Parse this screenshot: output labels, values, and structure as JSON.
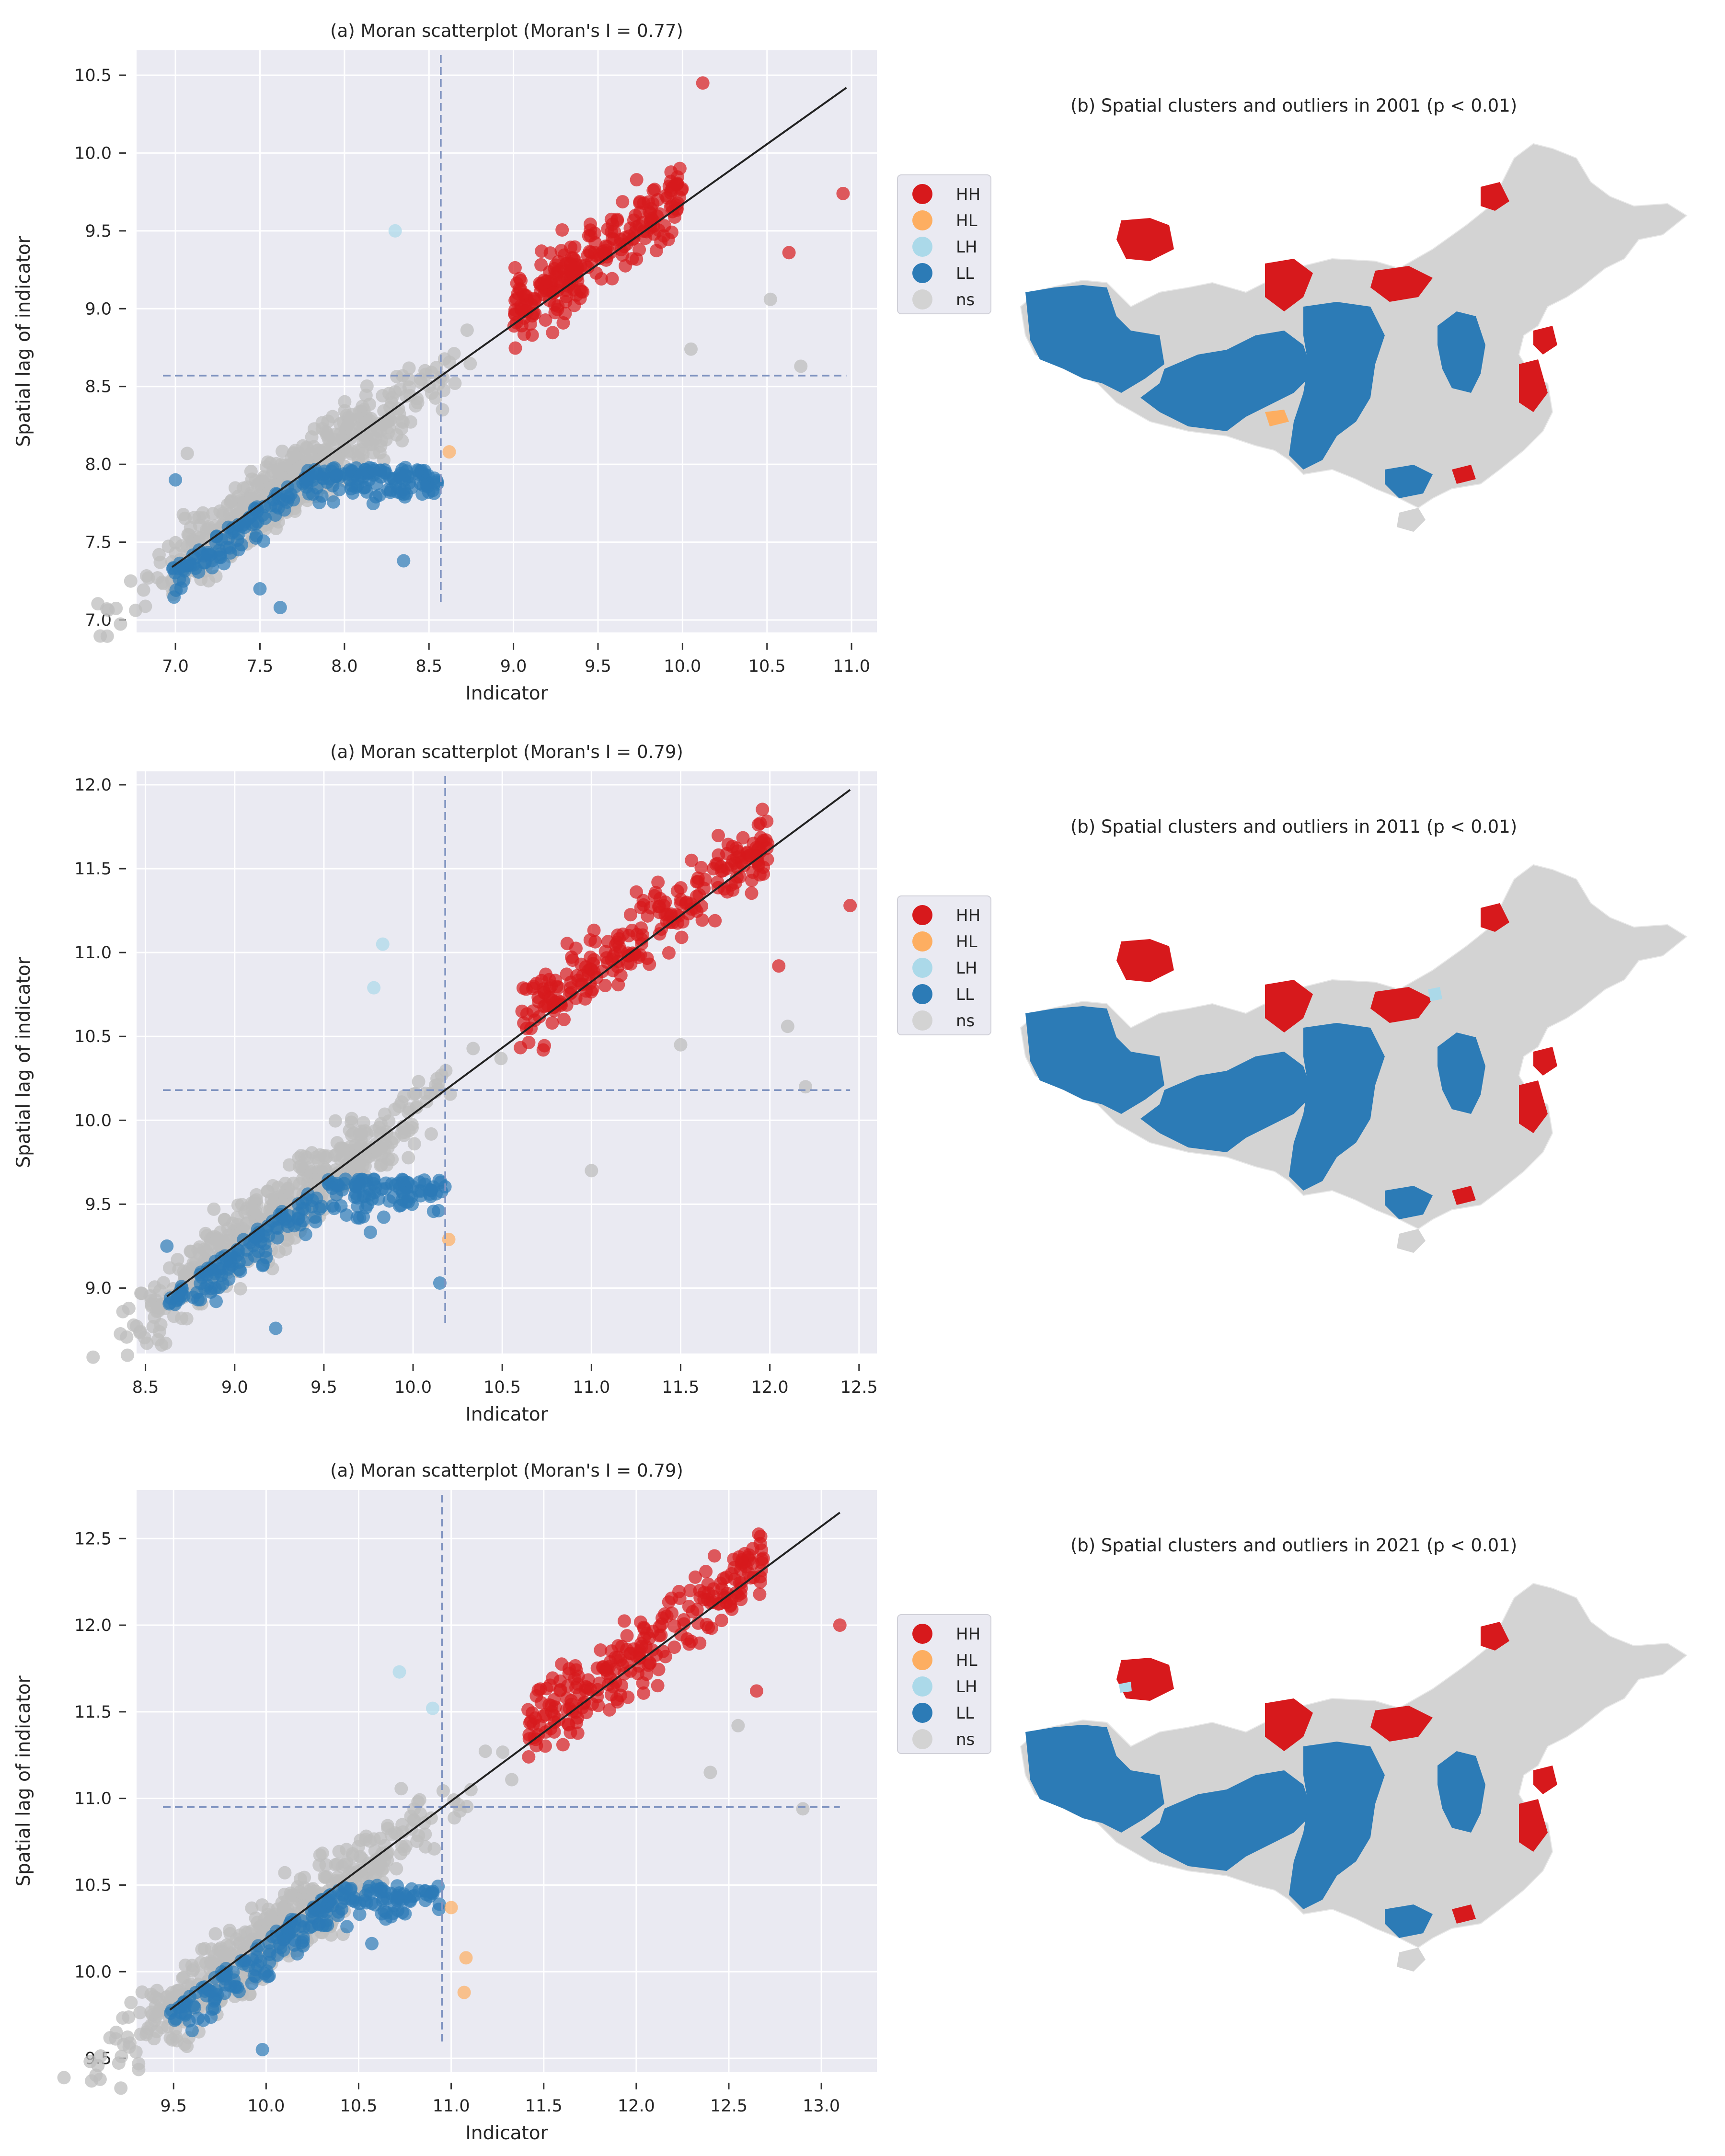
{
  "colors": {
    "background": "#eaeaf2",
    "grid": "#ffffff",
    "HH": "#d7191c",
    "HL": "#fdae61",
    "LH": "#abd9e9",
    "LL": "#2c7bb6",
    "ns": "#bdbdbd",
    "map_ns": "#d3d3d3",
    "fit_line": "#222222",
    "mean_line": "#7f93c0"
  },
  "legend": [
    "HH",
    "HL",
    "LH",
    "LL",
    "ns"
  ],
  "xlabel": "Indicator",
  "ylabel": "Spatial lag of indicator",
  "panels": [
    {
      "scatter_title": "(a) Moran scatterplot (Moran's I = 0.77)",
      "map_title": "(b) Spatial clusters and outliers in 2001 (p < 0.01)",
      "xlim": [
        6.77,
        11.15
      ],
      "ylim": [
        6.92,
        10.66
      ],
      "xticks": [
        "7.0",
        "7.5",
        "8.0",
        "8.5",
        "9.0",
        "9.5",
        "10.0",
        "10.5",
        "11.0"
      ],
      "yticks": [
        "7.0",
        "7.5",
        "8.0",
        "8.5",
        "9.0",
        "9.5",
        "10.0",
        "10.5"
      ],
      "mean": 8.57,
      "line": [
        [
          6.98,
          7.34
        ],
        [
          10.97,
          10.42
        ]
      ],
      "clusters": {
        "HH": {
          "x": [
            9.0,
            10.0
          ],
          "y": [
            8.95,
            10.45
          ]
        },
        "LL": {
          "x": [
            6.98,
            8.55
          ],
          "y": [
            7.08,
            7.98
          ]
        },
        "ns": {
          "x": [
            7.8,
            10.7
          ],
          "y": [
            7.9,
            9.2
          ]
        }
      },
      "points": {
        "HL": [
          [
            8.62,
            8.08
          ]
        ],
        "LH": [
          [
            8.3,
            9.5
          ]
        ],
        "LL": [
          [
            7.62,
            7.08
          ],
          [
            7.5,
            7.2
          ],
          [
            8.35,
            7.38
          ],
          [
            7.0,
            7.9
          ]
        ],
        "HH": [
          [
            10.95,
            9.74
          ],
          [
            10.63,
            9.36
          ],
          [
            10.12,
            10.45
          ]
        ],
        "ns": [
          [
            10.7,
            8.63
          ],
          [
            10.52,
            9.06
          ],
          [
            10.05,
            8.74
          ],
          [
            7.07,
            8.07
          ]
        ]
      }
    },
    {
      "scatter_title": "(a) Moran scatterplot (Moran's I = 0.79)",
      "map_title": "(b) Spatial clusters and outliers in 2011 (p < 0.01)",
      "xlim": [
        8.45,
        12.6
      ],
      "ylim": [
        8.61,
        12.08
      ],
      "xticks": [
        "8.5",
        "9.0",
        "9.5",
        "10.0",
        "10.5",
        "11.0",
        "11.5",
        "12.0",
        "12.5"
      ],
      "yticks": [
        "9.0",
        "9.5",
        "10.0",
        "10.5",
        "11.0",
        "11.5",
        "12.0"
      ],
      "mean": 10.18,
      "line": [
        [
          8.62,
          8.95
        ],
        [
          12.45,
          11.97
        ]
      ],
      "clusters": {
        "HH": {
          "x": [
            10.6,
            12.0
          ],
          "y": [
            10.6,
            11.9
          ]
        },
        "LL": {
          "x": [
            8.62,
            10.2
          ],
          "y": [
            8.9,
            9.65
          ]
        },
        "ns": {
          "x": [
            9.3,
            12.3
          ],
          "y": [
            9.4,
            10.8
          ]
        }
      },
      "points": {
        "HL": [
          [
            10.2,
            9.29
          ]
        ],
        "LH": [
          [
            9.83,
            11.05
          ],
          [
            9.78,
            10.79
          ]
        ],
        "LL": [
          [
            9.23,
            8.76
          ],
          [
            10.15,
            9.03
          ],
          [
            8.62,
            9.25
          ]
        ],
        "HH": [
          [
            12.45,
            11.28
          ],
          [
            12.05,
            10.92
          ]
        ],
        "ns": [
          [
            12.2,
            10.2
          ],
          [
            12.1,
            10.56
          ],
          [
            11.5,
            10.45
          ],
          [
            11.0,
            9.7
          ]
        ]
      }
    },
    {
      "scatter_title": "(a) Moran scatterplot (Moran's I = 0.79)",
      "map_title": "(b) Spatial clusters and outliers in 2021 (p < 0.01)",
      "xlim": [
        9.3,
        13.3
      ],
      "ylim": [
        9.42,
        12.78
      ],
      "xticks": [
        "9.5",
        "10.0",
        "10.5",
        "11.0",
        "11.5",
        "12.0",
        "12.5",
        "13.0"
      ],
      "yticks": [
        "9.5",
        "10.0",
        "10.5",
        "11.0",
        "11.5",
        "12.0",
        "12.5"
      ],
      "mean": 10.95,
      "line": [
        [
          9.48,
          9.78
        ],
        [
          13.1,
          12.65
        ]
      ],
      "clusters": {
        "HH": {
          "x": [
            11.4,
            12.7
          ],
          "y": [
            11.3,
            12.6
          ]
        },
        "LL": {
          "x": [
            9.48,
            10.95
          ],
          "y": [
            9.7,
            10.5
          ]
        },
        "ns": {
          "x": [
            10.0,
            12.9
          ],
          "y": [
            10.3,
            11.7
          ]
        }
      },
      "points": {
        "HL": [
          [
            11.08,
            10.08
          ],
          [
            11.07,
            9.88
          ],
          [
            11.0,
            10.37
          ]
        ],
        "LH": [
          [
            10.72,
            11.73
          ],
          [
            10.9,
            11.52
          ]
        ],
        "LL": [
          [
            9.98,
            9.55
          ],
          [
            9.6,
            9.66
          ]
        ],
        "HH": [
          [
            13.1,
            12.0
          ],
          [
            12.65,
            11.62
          ]
        ],
        "ns": [
          [
            12.9,
            10.94
          ],
          [
            12.55,
            11.42
          ],
          [
            12.4,
            11.15
          ]
        ]
      }
    }
  ]
}
